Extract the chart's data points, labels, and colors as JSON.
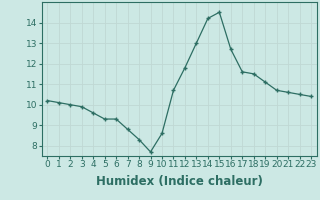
{
  "x": [
    0,
    1,
    2,
    3,
    4,
    5,
    6,
    7,
    8,
    9,
    10,
    11,
    12,
    13,
    14,
    15,
    16,
    17,
    18,
    19,
    20,
    21,
    22,
    23
  ],
  "y": [
    10.2,
    10.1,
    10.0,
    9.9,
    9.6,
    9.3,
    9.3,
    8.8,
    8.3,
    7.7,
    8.6,
    10.7,
    11.8,
    13.0,
    14.2,
    14.5,
    12.7,
    11.6,
    11.5,
    11.1,
    10.7,
    10.6,
    10.5,
    10.4
  ],
  "xlabel": "Humidex (Indice chaleur)",
  "ylim": [
    7.5,
    15.0
  ],
  "xlim": [
    -0.5,
    23.5
  ],
  "yticks": [
    8,
    9,
    10,
    11,
    12,
    13,
    14
  ],
  "xticks": [
    0,
    1,
    2,
    3,
    4,
    5,
    6,
    7,
    8,
    9,
    10,
    11,
    12,
    13,
    14,
    15,
    16,
    17,
    18,
    19,
    20,
    21,
    22,
    23
  ],
  "line_color": "#2d6e63",
  "bg_color": "#cce8e4",
  "grid_color": "#c0d8d4",
  "tick_label_fontsize": 6.5,
  "xlabel_fontsize": 8.5,
  "spine_color": "#2d6e63"
}
